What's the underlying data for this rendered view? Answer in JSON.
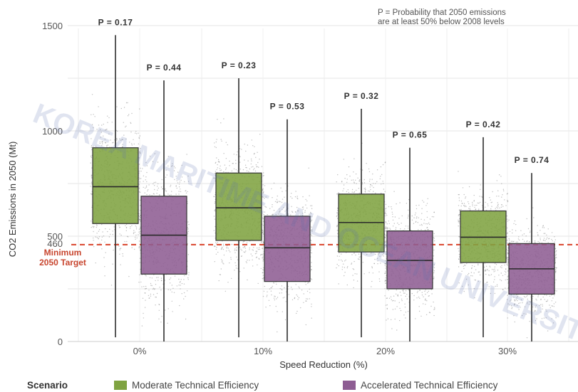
{
  "chart_data": {
    "type": "box",
    "xlabel": "Speed Reduction (%)",
    "ylabel": "CO2 Emissions in 2050 (Mt)",
    "ylim": [
      0,
      1500
    ],
    "yticks": [
      0,
      500,
      1000,
      1500
    ],
    "extra_ytick": 460,
    "grid": true,
    "categories": [
      "0%",
      "10%",
      "20%",
      "30%"
    ],
    "target": {
      "value": 460,
      "label_line1": "Minimum",
      "label_line2": "2050 Target",
      "color": "#d9432b"
    },
    "annotation_line1": "P = Probability that 2050 emissions",
    "annotation_line2": "are at least 50% below 2008 levels",
    "legend_title": "Scenario",
    "legend_position": "bottom",
    "series": [
      {
        "name": "Moderate Technical Efficiency",
        "color": "#7fa341",
        "boxes": [
          {
            "category": "0%",
            "whisker_low": 20,
            "q1": 560,
            "median": 735,
            "q3": 920,
            "whisker_high": 1455,
            "p_label": "P = 0.17"
          },
          {
            "category": "10%",
            "whisker_low": 20,
            "q1": 480,
            "median": 635,
            "q3": 800,
            "whisker_high": 1250,
            "p_label": "P = 0.23"
          },
          {
            "category": "20%",
            "whisker_low": 20,
            "q1": 425,
            "median": 565,
            "q3": 700,
            "whisker_high": 1105,
            "p_label": "P = 0.32"
          },
          {
            "category": "30%",
            "whisker_low": 20,
            "q1": 375,
            "median": 495,
            "q3": 620,
            "whisker_high": 970,
            "p_label": "P = 0.42"
          }
        ]
      },
      {
        "name": "Accelerated Technical Efficiency",
        "color": "#8e5d93",
        "boxes": [
          {
            "category": "0%",
            "whisker_low": 0,
            "q1": 320,
            "median": 505,
            "q3": 690,
            "whisker_high": 1240,
            "p_label": "P = 0.44"
          },
          {
            "category": "10%",
            "whisker_low": 0,
            "q1": 285,
            "median": 445,
            "q3": 595,
            "whisker_high": 1055,
            "p_label": "P = 0.53"
          },
          {
            "category": "20%",
            "whisker_low": 0,
            "q1": 250,
            "median": 385,
            "q3": 525,
            "whisker_high": 920,
            "p_label": "P = 0.65"
          },
          {
            "category": "30%",
            "whisker_low": 0,
            "q1": 225,
            "median": 345,
            "q3": 465,
            "whisker_high": 800,
            "p_label": "P = 0.74"
          }
        ]
      }
    ],
    "watermark_text": "KOREA MARITIME AND OCEAN UNIVERSITY"
  }
}
